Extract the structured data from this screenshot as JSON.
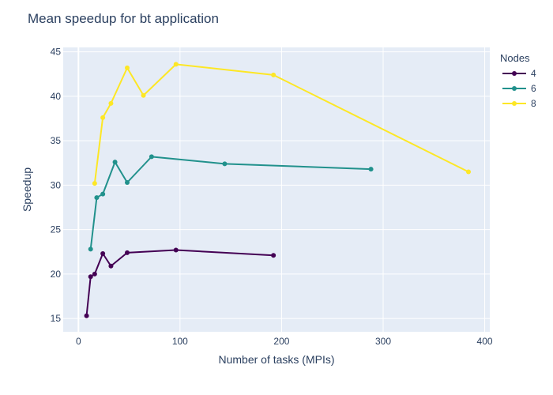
{
  "chart_data": {
    "type": "line",
    "title": "Mean speedup for bt application",
    "xlabel": "Number of tasks (MPIs)",
    "ylabel": "Speedup",
    "xlim": [
      -15,
      405
    ],
    "ylim": [
      13.5,
      45.5
    ],
    "x_ticks": [
      0,
      100,
      200,
      300,
      400
    ],
    "y_ticks": [
      15,
      20,
      25,
      30,
      35,
      40,
      45
    ],
    "grid": true,
    "legend_title": "Nodes",
    "legend_position": "top-right",
    "plot_background": "#e5ecf6",
    "series": [
      {
        "name": "4",
        "color": "#440154",
        "x": [
          8,
          12,
          16,
          24,
          32,
          48,
          96,
          192
        ],
        "y": [
          15.3,
          19.7,
          20.0,
          22.3,
          20.9,
          22.4,
          22.7,
          22.1
        ]
      },
      {
        "name": "6",
        "color": "#21918c",
        "x": [
          12,
          18,
          24,
          36,
          48,
          72,
          144,
          288
        ],
        "y": [
          22.8,
          28.6,
          29.0,
          32.6,
          30.3,
          33.2,
          32.4,
          31.8
        ]
      },
      {
        "name": "8",
        "color": "#fde725",
        "x": [
          16,
          24,
          32,
          48,
          64,
          96,
          192,
          384
        ],
        "y": [
          30.2,
          37.6,
          39.2,
          43.2,
          40.1,
          43.6,
          42.4,
          31.5
        ]
      }
    ]
  }
}
